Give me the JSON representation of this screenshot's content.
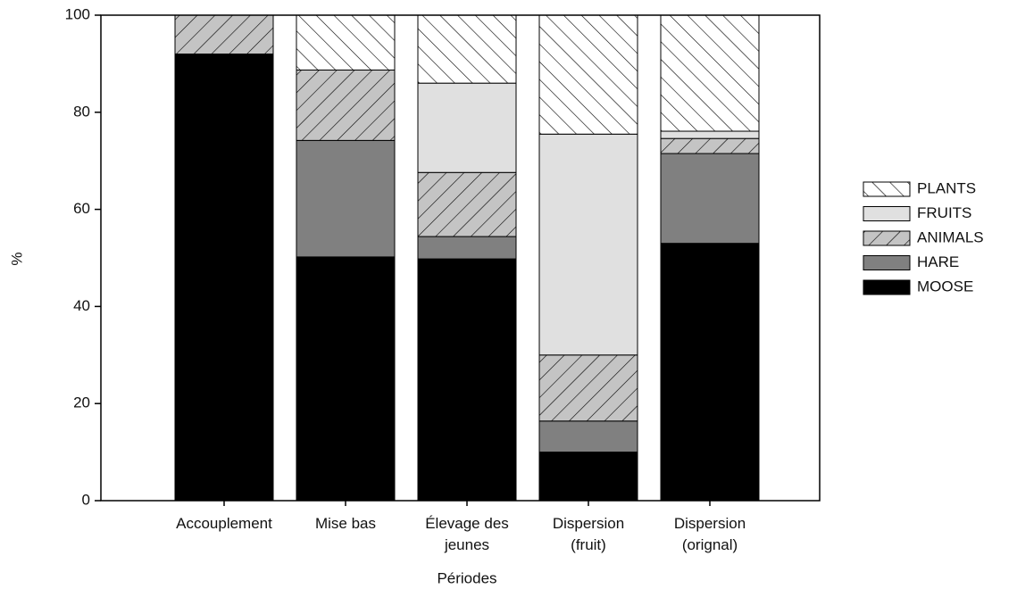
{
  "chart_data": {
    "type": "stacked_bar",
    "x_label": "Périodes",
    "y_label": "%",
    "categories": [
      "Accouplement",
      "Mise bas",
      "Élevage des\njeunes",
      "Dispersion\n(fruit)",
      "Dispersion\n(orignal)"
    ],
    "series": [
      {
        "name": "MOOSE",
        "color": "#000000",
        "hatch": null,
        "values": [
          92,
          50.2,
          49.8,
          10,
          53
        ]
      },
      {
        "name": "HARE",
        "color": "#808080",
        "hatch": null,
        "values": [
          0,
          24,
          4.6,
          6.4,
          18.5
        ]
      },
      {
        "name": "ANIMALS",
        "color": "#c4c4c4",
        "hatch": "slash",
        "values": [
          8,
          14.5,
          13.2,
          13.6,
          3.1
        ]
      },
      {
        "name": "FRUITS",
        "color": "#e0e0e0",
        "hatch": null,
        "values": [
          0,
          0,
          18.4,
          45.5,
          1.5
        ]
      },
      {
        "name": "PLANTS",
        "color": "#ffffff",
        "hatch": "backslash",
        "values": [
          0,
          11.3,
          14,
          24.5,
          23.9
        ]
      }
    ],
    "ylim": [
      0,
      100
    ],
    "yticks": [
      0,
      20,
      40,
      60,
      80,
      100
    ],
    "legend": "right"
  }
}
